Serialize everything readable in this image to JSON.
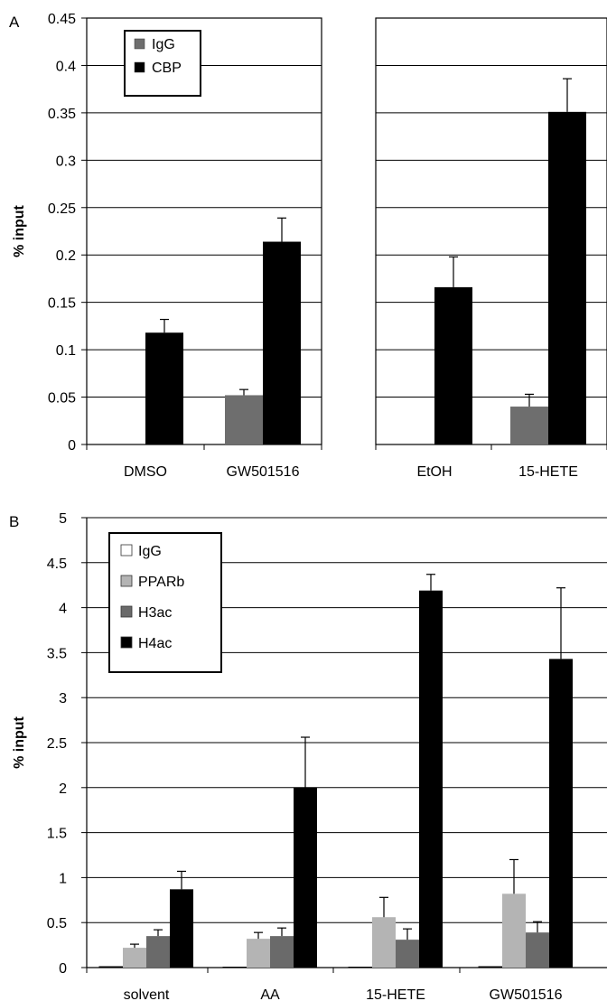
{
  "colors": {
    "igg_a": "#6e6e6e",
    "cbp": "#000000",
    "igg_b": "#ffffff",
    "pparb": "#b4b4b4",
    "h3ac": "#6a6a6a",
    "h4ac": "#000000",
    "axis": "#000000",
    "grid": "#000000"
  },
  "chart_data": [
    {
      "panel_label": "A",
      "type": "bar",
      "ylabel": "% input",
      "ylim": [
        0,
        0.45
      ],
      "yticks": [
        "0",
        "0.05",
        "0.1",
        "0.15",
        "0.2",
        "0.25",
        "0.3",
        "0.35",
        "0.4",
        "0.45"
      ],
      "grid": true,
      "legend_position": "top-left",
      "subpanels": [
        {
          "categories": [
            "DMSO",
            "GW501516"
          ],
          "series": [
            {
              "name": "IgG",
              "values": [
                0,
                0.052
              ],
              "errors": [
                0,
                0.006
              ]
            },
            {
              "name": "CBP",
              "values": [
                0.118,
                0.214
              ],
              "errors": [
                0.014,
                0.025
              ]
            }
          ]
        },
        {
          "categories": [
            "EtOH",
            "15-HETE"
          ],
          "series": [
            {
              "name": "IgG",
              "values": [
                0,
                0.04
              ],
              "errors": [
                0,
                0.013
              ]
            },
            {
              "name": "CBP",
              "values": [
                0.166,
                0.351
              ],
              "errors": [
                0.032,
                0.035
              ]
            }
          ]
        }
      ]
    },
    {
      "panel_label": "B",
      "type": "bar",
      "ylabel": "% input",
      "ylim": [
        0,
        5
      ],
      "yticks": [
        "0",
        "0.5",
        "1",
        "1.5",
        "2",
        "2.5",
        "3",
        "3.5",
        "4",
        "4.5",
        "5"
      ],
      "grid": true,
      "legend_position": "top-left",
      "categories": [
        "solvent",
        "AA",
        "15-HETE",
        "GW501516"
      ],
      "series": [
        {
          "name": "IgG",
          "values": [
            0.01,
            0.005,
            0.005,
            0.01
          ],
          "errors": [
            0,
            0,
            0,
            0
          ]
        },
        {
          "name": "PPARb",
          "values": [
            0.22,
            0.32,
            0.56,
            0.82
          ],
          "errors": [
            0.04,
            0.07,
            0.22,
            0.38
          ]
        },
        {
          "name": "H3ac",
          "values": [
            0.35,
            0.35,
            0.31,
            0.39
          ],
          "errors": [
            0.07,
            0.09,
            0.12,
            0.12
          ]
        },
        {
          "name": "H4ac",
          "values": [
            0.87,
            2.0,
            4.19,
            3.43
          ],
          "errors": [
            0.2,
            0.56,
            0.18,
            0.79
          ]
        }
      ]
    }
  ]
}
